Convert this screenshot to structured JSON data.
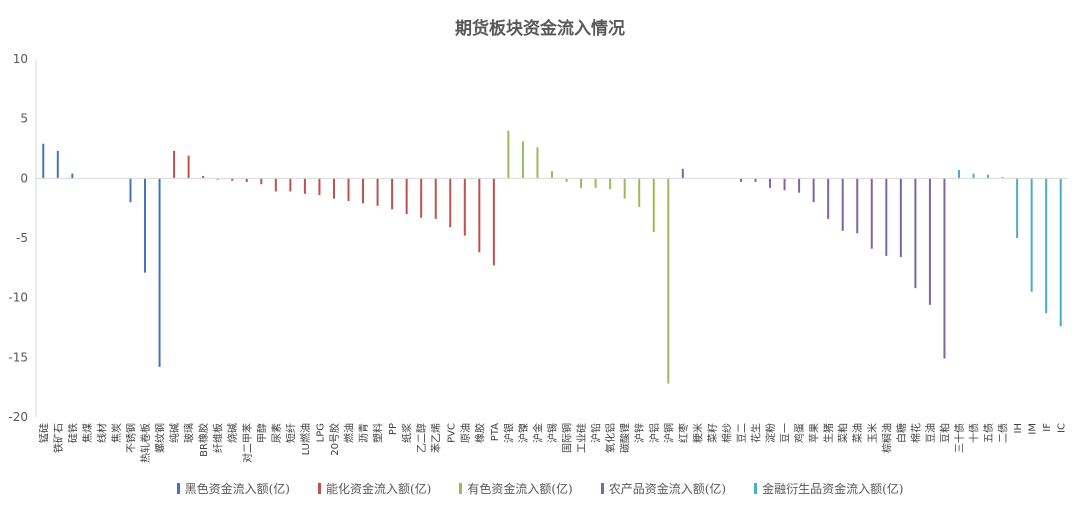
{
  "chart_data": {
    "type": "bar",
    "title": "期货板块资金流入情况",
    "xlabel": "",
    "ylabel": "",
    "ylim": [
      -20,
      10
    ],
    "yticks": [
      10,
      5,
      0,
      -5,
      -10,
      -15,
      -20
    ],
    "grid": false,
    "legend_position": "bottom",
    "colors": {
      "black": "#4472C4",
      "energy": "#C0504D",
      "metal": "#9BBB59",
      "agri": "#8064A2",
      "finance": "#4BACC6"
    },
    "legend": [
      {
        "key": "black",
        "label": "黑色资金流入额(亿)"
      },
      {
        "key": "energy",
        "label": "能化资金流入额(亿)"
      },
      {
        "key": "metal",
        "label": "有色资金流入额(亿)"
      },
      {
        "key": "agri",
        "label": "农产品资金流入额(亿)"
      },
      {
        "key": "finance",
        "label": "金融衍生品资金流入额(亿)"
      }
    ],
    "categories": [
      "锰硅",
      "铁矿石",
      "硅铁",
      "焦煤",
      "线材",
      "焦炭",
      "不锈钢",
      "热轧卷板",
      "螺纹钢",
      "纯碱",
      "玻璃",
      "BR橡胶",
      "纤维板",
      "烧碱",
      "对二甲苯",
      "甲醇",
      "尿素",
      "短纤",
      "LU燃油",
      "LPG",
      "20号胶",
      "燃油",
      "沥青",
      "塑料",
      "PP",
      "纸浆",
      "乙二醇",
      "苯乙烯",
      "PVC",
      "原油",
      "橡胶",
      "PTA",
      "沪银",
      "沪镍",
      "沪金",
      "沪锡",
      "国际铜",
      "工业硅",
      "沪铅",
      "氧化铝",
      "碳酸锂",
      "沪锌",
      "沪铝",
      "沪铜",
      "红枣",
      "粳米",
      "菜籽",
      "棉纱",
      "豆二",
      "花生",
      "淀粉",
      "豆一",
      "鸡蛋",
      "苹果",
      "生猪",
      "菜粕",
      "菜油",
      "玉米",
      "棕榈油",
      "白糖",
      "棉花",
      "豆油",
      "豆粕",
      "三十债",
      "十债",
      "五债",
      "二债",
      "IH",
      "IM",
      "IF",
      "IC"
    ],
    "groups": [
      "black",
      "black",
      "black",
      "black",
      "black",
      "black",
      "black",
      "black",
      "black",
      "energy",
      "energy",
      "energy",
      "energy",
      "energy",
      "energy",
      "energy",
      "energy",
      "energy",
      "energy",
      "energy",
      "energy",
      "energy",
      "energy",
      "energy",
      "energy",
      "energy",
      "energy",
      "energy",
      "energy",
      "energy",
      "energy",
      "energy",
      "metal",
      "metal",
      "metal",
      "metal",
      "metal",
      "metal",
      "metal",
      "metal",
      "metal",
      "metal",
      "metal",
      "metal",
      "agri",
      "agri",
      "agri",
      "agri",
      "agri",
      "agri",
      "agri",
      "agri",
      "agri",
      "agri",
      "agri",
      "agri",
      "agri",
      "agri",
      "agri",
      "agri",
      "agri",
      "agri",
      "agri",
      "finance",
      "finance",
      "finance",
      "finance",
      "finance",
      "finance",
      "finance",
      "finance"
    ],
    "values": [
      2.9,
      2.3,
      0.4,
      0,
      0,
      0,
      -2.0,
      -7.9,
      -15.8,
      2.3,
      1.9,
      0.2,
      -0.1,
      -0.2,
      -0.3,
      -0.5,
      -1.1,
      -1.1,
      -1.3,
      -1.4,
      -1.7,
      -1.9,
      -2.1,
      -2.3,
      -2.6,
      -3.0,
      -3.3,
      -3.4,
      -4.1,
      -4.8,
      -6.2,
      -7.3,
      4.0,
      3.1,
      2.6,
      0.6,
      -0.3,
      -0.8,
      -0.8,
      -0.9,
      -1.7,
      -2.4,
      -4.5,
      -17.2,
      0.8,
      0,
      0,
      0,
      -0.3,
      -0.3,
      -0.8,
      -1.0,
      -1.2,
      -2.0,
      -3.4,
      -4.4,
      -4.6,
      -5.9,
      -6.5,
      -6.6,
      -9.2,
      -10.6,
      -15.1,
      0.7,
      0.4,
      0.3,
      0.1,
      -5.0,
      -9.5,
      -11.3,
      -12.4
    ]
  }
}
